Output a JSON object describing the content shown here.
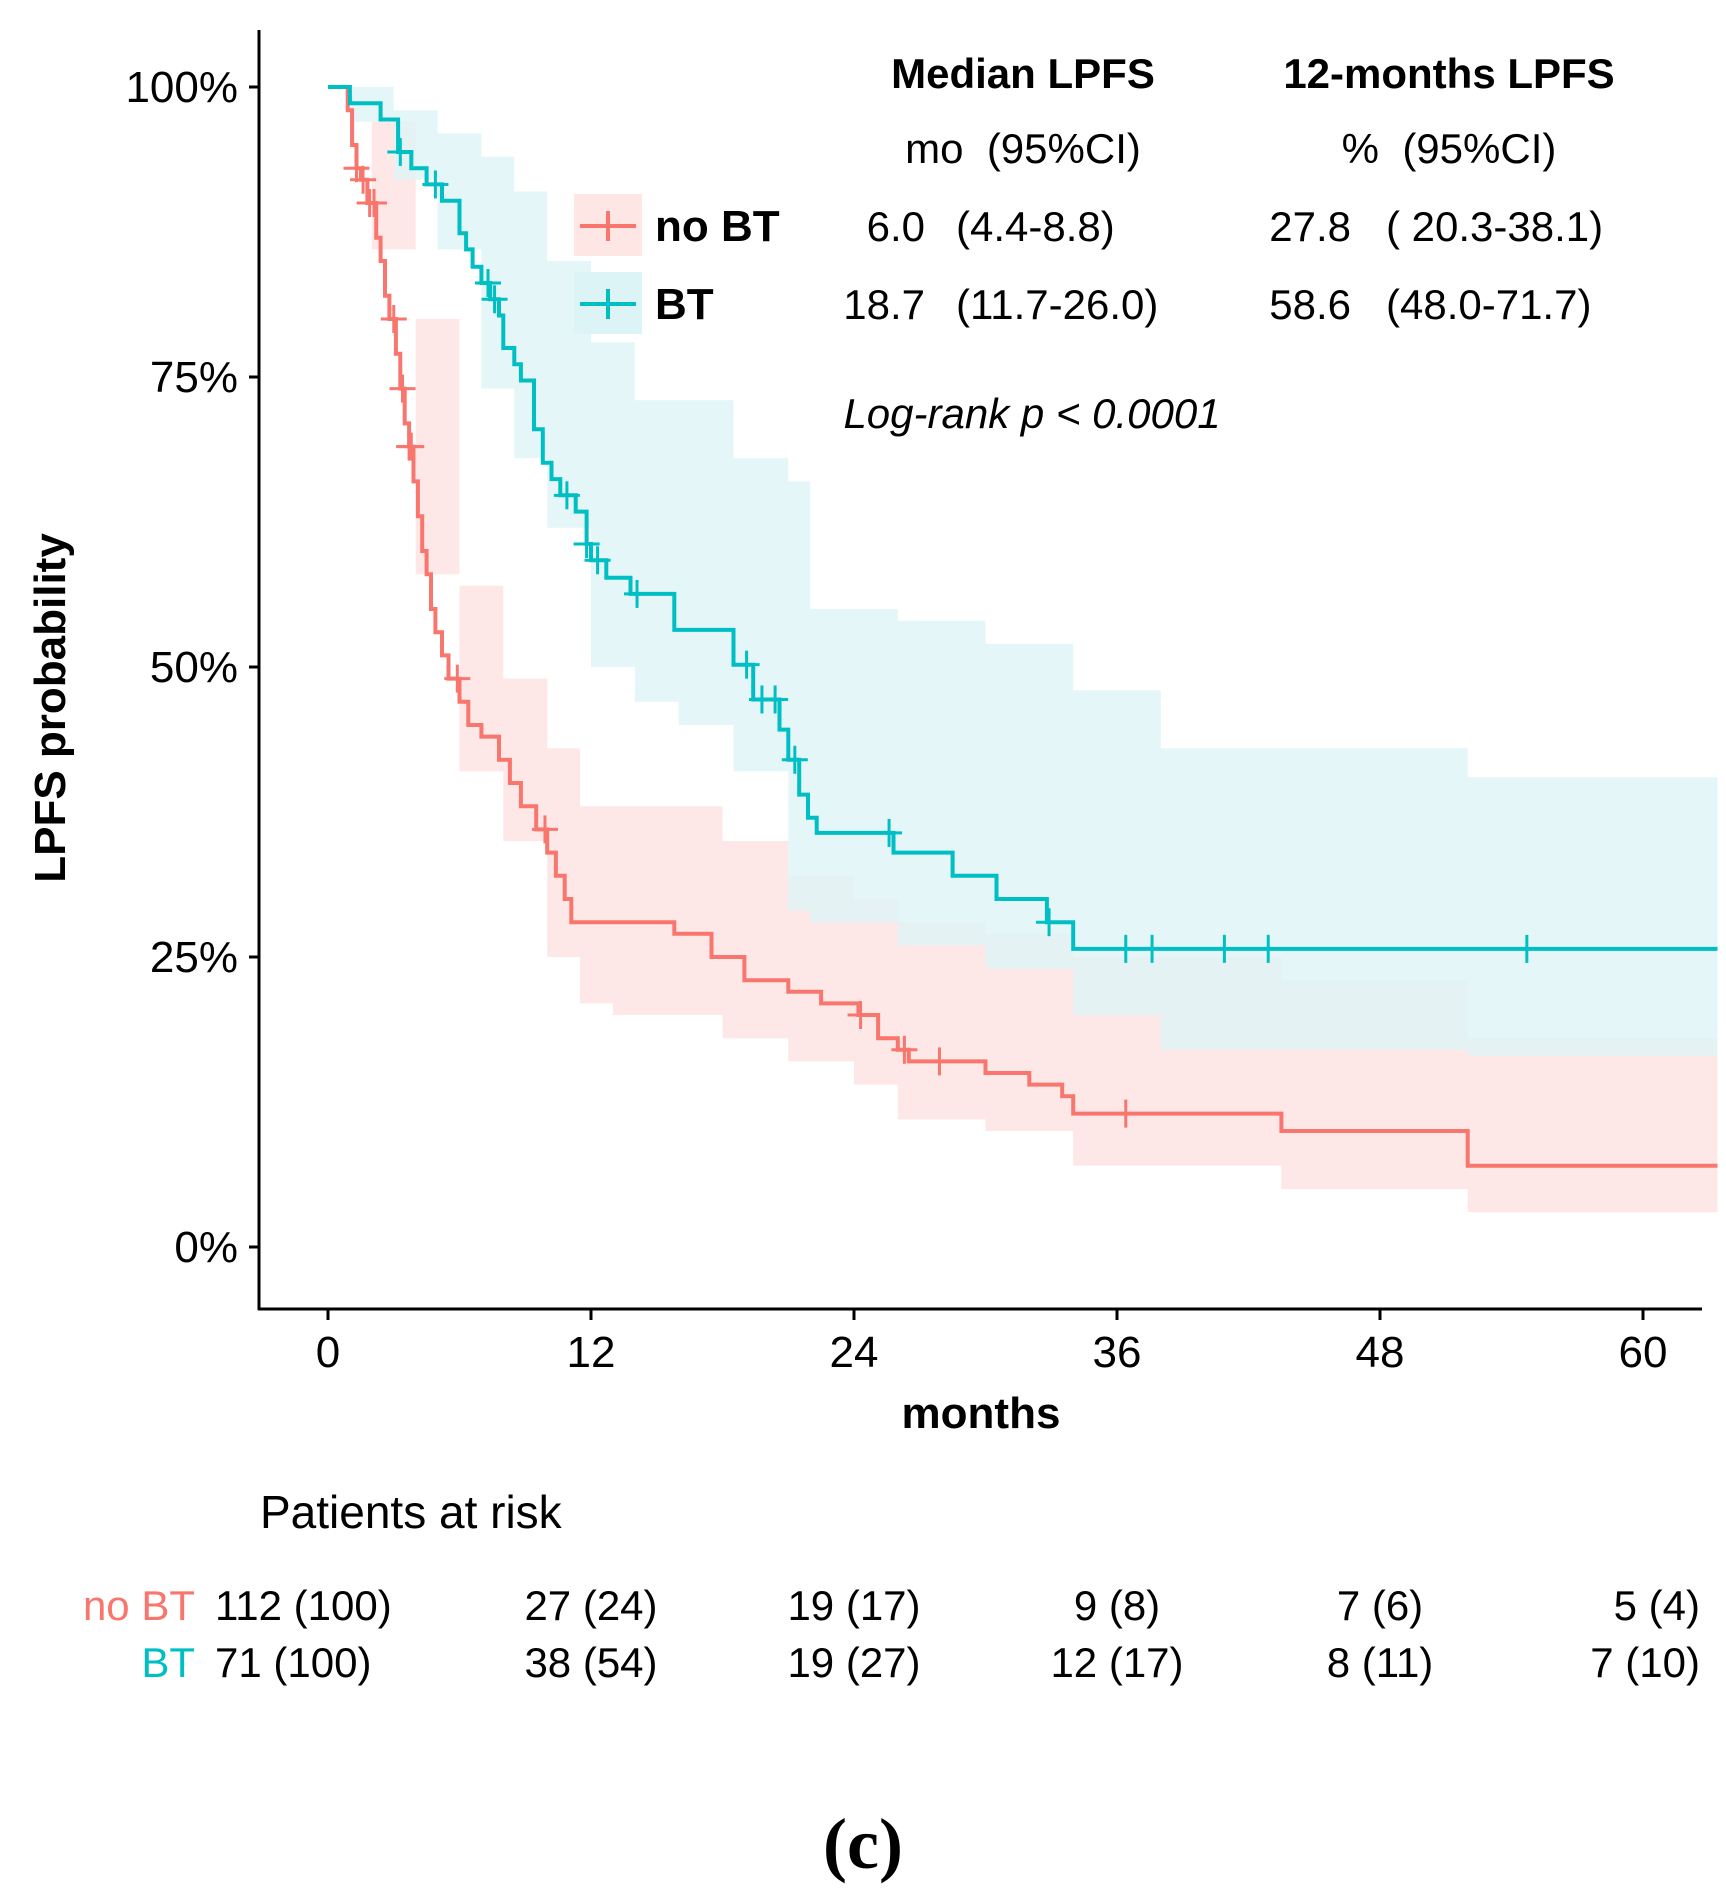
{
  "chart_data": {
    "type": "line",
    "subtype": "kaplan-meier",
    "xlabel": "months",
    "ylabel": "LPFS probability",
    "xlim": [
      -2.9,
      63.4
    ],
    "ylim": [
      -0.05,
      1.05
    ],
    "x_ticks": [
      0,
      12,
      24,
      36,
      48,
      60
    ],
    "x_tick_labels": [
      "0",
      "12",
      "24",
      "36",
      "48",
      "60"
    ],
    "y_ticks": [
      0,
      0.25,
      0.5,
      0.75,
      1.0
    ],
    "y_tick_labels": [
      "0%",
      "25%",
      "50%",
      "75%",
      "100%"
    ],
    "grid": false,
    "legend_position": "top-center",
    "series": [
      {
        "name": "no BT",
        "color": "#F8766D",
        "band_color": "#FDE6E4",
        "steps": [
          [
            0,
            1.0
          ],
          [
            0.9,
            1.0
          ],
          [
            0.9,
            0.98
          ],
          [
            1.1,
            0.95
          ],
          [
            1.3,
            0.93
          ],
          [
            1.5,
            0.92
          ],
          [
            1.8,
            0.9
          ],
          [
            2.2,
            0.87
          ],
          [
            2.4,
            0.85
          ],
          [
            2.6,
            0.82
          ],
          [
            2.8,
            0.8
          ],
          [
            3.1,
            0.77
          ],
          [
            3.3,
            0.74
          ],
          [
            3.5,
            0.71
          ],
          [
            3.7,
            0.69
          ],
          [
            3.9,
            0.66
          ],
          [
            4.1,
            0.63
          ],
          [
            4.3,
            0.6
          ],
          [
            4.5,
            0.58
          ],
          [
            4.7,
            0.55
          ],
          [
            4.9,
            0.53
          ],
          [
            5.2,
            0.51
          ],
          [
            5.5,
            0.49
          ],
          [
            6.0,
            0.47
          ],
          [
            6.4,
            0.45
          ],
          [
            7.0,
            0.44
          ],
          [
            7.8,
            0.42
          ],
          [
            8.3,
            0.4
          ],
          [
            8.8,
            0.38
          ],
          [
            9.5,
            0.36
          ],
          [
            10.0,
            0.34
          ],
          [
            10.4,
            0.32
          ],
          [
            10.8,
            0.3
          ],
          [
            11.1,
            0.28
          ],
          [
            15.8,
            0.27
          ],
          [
            17.5,
            0.25
          ],
          [
            19.0,
            0.23
          ],
          [
            21.0,
            0.22
          ],
          [
            22.5,
            0.21
          ],
          [
            24.2,
            0.2
          ],
          [
            25.1,
            0.18
          ],
          [
            26.0,
            0.17
          ],
          [
            26.5,
            0.16
          ],
          [
            30.0,
            0.15
          ],
          [
            32.0,
            0.14
          ],
          [
            33.5,
            0.13
          ],
          [
            34.0,
            0.115
          ],
          [
            43.5,
            0.1
          ],
          [
            52.0,
            0.07
          ],
          [
            63.4,
            0.07
          ]
        ],
        "band": [
          [
            0,
            1.0,
            1.0
          ],
          [
            2,
            0.97,
            0.86
          ],
          [
            4,
            0.8,
            0.58
          ],
          [
            6,
            0.57,
            0.41
          ],
          [
            8,
            0.49,
            0.35
          ],
          [
            10,
            0.43,
            0.25
          ],
          [
            11.5,
            0.38,
            0.21
          ],
          [
            13,
            0.38,
            0.2
          ],
          [
            16,
            0.38,
            0.2
          ],
          [
            18,
            0.35,
            0.18
          ],
          [
            21,
            0.32,
            0.16
          ],
          [
            24,
            0.3,
            0.14
          ],
          [
            26,
            0.28,
            0.11
          ],
          [
            30,
            0.27,
            0.1
          ],
          [
            34,
            0.25,
            0.07
          ],
          [
            43.5,
            0.23,
            0.05
          ],
          [
            52,
            0.18,
            0.03
          ],
          [
            63.4,
            0.155,
            0.03
          ]
        ],
        "censor_x": [
          1.3,
          1.6,
          1.9,
          2.1,
          3.0,
          3.4,
          3.7,
          3.8,
          5.9,
          9.9,
          24.3,
          26.3,
          27.9,
          36.4
        ]
      },
      {
        "name": "BT",
        "color": "#00BFC4",
        "band_color": "#DDF4F6",
        "steps": [
          [
            0,
            1.0
          ],
          [
            1.0,
            1.0
          ],
          [
            1.0,
            0.986
          ],
          [
            2.4,
            0.972
          ],
          [
            3.2,
            0.944
          ],
          [
            3.8,
            0.93
          ],
          [
            4.5,
            0.916
          ],
          [
            5.2,
            0.902
          ],
          [
            6.0,
            0.874
          ],
          [
            6.3,
            0.86
          ],
          [
            6.6,
            0.845
          ],
          [
            7.0,
            0.831
          ],
          [
            7.4,
            0.817
          ],
          [
            7.8,
            0.803
          ],
          [
            8.0,
            0.775
          ],
          [
            8.5,
            0.761
          ],
          [
            8.8,
            0.747
          ],
          [
            9.4,
            0.705
          ],
          [
            9.8,
            0.676
          ],
          [
            10.2,
            0.662
          ],
          [
            10.6,
            0.648
          ],
          [
            11.3,
            0.634
          ],
          [
            11.8,
            0.606
          ],
          [
            12.0,
            0.592
          ],
          [
            12.7,
            0.577
          ],
          [
            13.8,
            0.563
          ],
          [
            15.8,
            0.532
          ],
          [
            18.5,
            0.502
          ],
          [
            19.4,
            0.472
          ],
          [
            20.6,
            0.446
          ],
          [
            21.0,
            0.42
          ],
          [
            21.5,
            0.39
          ],
          [
            21.9,
            0.37
          ],
          [
            22.3,
            0.357
          ],
          [
            25.8,
            0.34
          ],
          [
            28.5,
            0.32
          ],
          [
            30.5,
            0.3
          ],
          [
            32.8,
            0.28
          ],
          [
            34.0,
            0.257
          ],
          [
            63.4,
            0.257
          ]
        ],
        "band": [
          [
            0,
            1.0,
            1.0
          ],
          [
            1,
            1.0,
            0.97
          ],
          [
            3,
            0.98,
            0.92
          ],
          [
            5,
            0.96,
            0.86
          ],
          [
            7,
            0.94,
            0.74
          ],
          [
            8.5,
            0.91,
            0.68
          ],
          [
            10,
            0.85,
            0.62
          ],
          [
            12,
            0.78,
            0.5
          ],
          [
            14,
            0.73,
            0.47
          ],
          [
            16,
            0.73,
            0.45
          ],
          [
            18.5,
            0.68,
            0.41
          ],
          [
            21,
            0.66,
            0.29
          ],
          [
            22,
            0.55,
            0.28
          ],
          [
            26,
            0.54,
            0.26
          ],
          [
            30,
            0.52,
            0.24
          ],
          [
            34,
            0.48,
            0.2
          ],
          [
            38,
            0.43,
            0.17
          ],
          [
            52,
            0.405,
            0.165
          ],
          [
            63.4,
            0.405,
            0.165
          ]
        ],
        "censor_x": [
          3.3,
          4.9,
          7.3,
          7.6,
          10.9,
          11.8,
          12.3,
          14.1,
          19.1,
          19.8,
          20.4,
          21.3,
          25.6,
          32.9,
          36.4,
          37.6,
          40.9,
          42.9,
          54.7
        ]
      }
    ],
    "legend_table": {
      "col1_header": "Median LPFS",
      "col2_header": "12-months LPFS",
      "col1_subheader": "mo  (95%CI)",
      "col2_subheader": "%  (95%CI)",
      "rows": [
        {
          "group": "no BT",
          "median": "6.0",
          "median_ci": "(4.4-8.8)",
          "lpfs12": "27.8",
          "lpfs12_ci": "( 20.3-38.1)"
        },
        {
          "group": "BT",
          "median": "18.7",
          "median_ci": "(11.7-26.0)",
          "lpfs12": "58.6",
          "lpfs12_ci": "(48.0-71.7)"
        }
      ]
    },
    "annotation": "Log-rank p < 0.0001",
    "risk_table": {
      "title": "Patients at risk",
      "times": [
        0,
        12,
        24,
        36,
        48,
        60
      ],
      "rows": [
        {
          "group": "no BT",
          "values": [
            "112 (100)",
            "27 (24)",
            "19 (17)",
            "9 (8)",
            "7 (6)",
            "5 (4)"
          ]
        },
        {
          "group": "BT",
          "values": [
            "71 (100)",
            "38 (54)",
            "19 (27)",
            "12 (17)",
            "8 (11)",
            "7 (10)"
          ]
        }
      ]
    },
    "panel_label": "(c)"
  }
}
